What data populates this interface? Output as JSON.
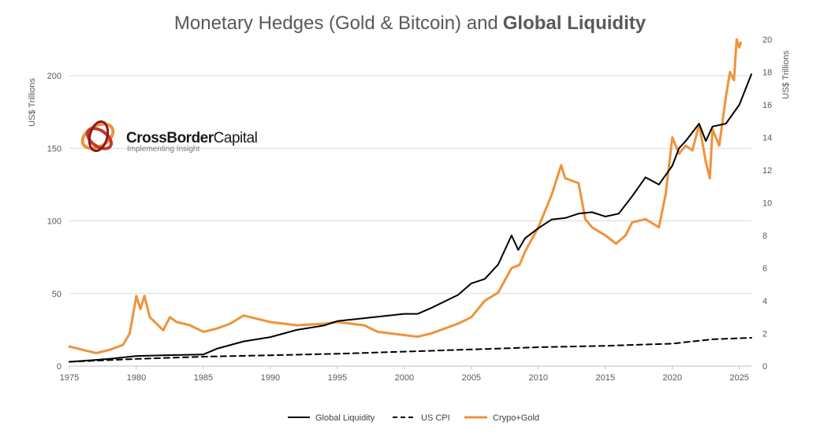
{
  "chart_data": {
    "type": "line",
    "title": "Monetary Hedges (Gold & Bitcoin) and",
    "title_bold": "Global Liquidity",
    "ylabel_left": "US$ Trillions",
    "ylabel_right": "US$ Trillions",
    "xlim": [
      1975,
      2025.9
    ],
    "ylim_left": [
      0,
      225
    ],
    "ylim_right": [
      0,
      20
    ],
    "x_ticks": [
      "1975",
      "1980",
      "1985",
      "1990",
      "1995",
      "2000",
      "2005",
      "2010",
      "2015",
      "2020",
      "2025"
    ],
    "y_ticks_left": [
      "0",
      "50",
      "100",
      "150",
      "200"
    ],
    "y_ticks_right": [
      "0",
      "2",
      "4",
      "6",
      "8",
      "10",
      "12",
      "14",
      "16",
      "18",
      "20"
    ],
    "grid": "horizontal",
    "legend_position": "bottom",
    "series": [
      {
        "name": "Global Liquidity",
        "axis": "left",
        "color": "#000000",
        "style": "solid",
        "x": [
          1975,
          1978,
          1980,
          1982,
          1985,
          1986,
          1988,
          1990,
          1992,
          1994,
          1995,
          1997,
          2000,
          2001,
          2002,
          2004,
          2005,
          2006,
          2007,
          2008,
          2008.5,
          2009,
          2010,
          2011,
          2012,
          2013,
          2014,
          2015,
          2016,
          2017,
          2018,
          2019,
          2020,
          2020.5,
          2021,
          2022,
          2022.5,
          2023,
          2024,
          2025,
          2025.9
        ],
        "values": [
          3,
          5,
          7,
          7.5,
          8,
          12,
          17,
          20,
          25,
          28,
          31,
          33,
          36,
          36,
          40,
          49,
          57,
          60,
          70,
          90,
          80,
          88,
          95,
          101,
          102,
          105,
          106,
          103,
          105,
          117,
          130,
          125,
          138,
          150,
          155,
          167,
          155,
          165,
          167,
          180,
          201
        ]
      },
      {
        "name": "US CPI",
        "axis": "left",
        "color": "#000000",
        "style": "dashed",
        "x": [
          1975,
          1980,
          1985,
          1990,
          1995,
          2000,
          2005,
          2010,
          2015,
          2020,
          2022,
          2023,
          2025.9
        ],
        "values": [
          3,
          5,
          6.5,
          7.5,
          8.5,
          10,
          11.5,
          13,
          14,
          15.5,
          17.5,
          18.5,
          19.5
        ]
      },
      {
        "name": "Crypo+Gold",
        "axis": "right",
        "color": "#F0923B",
        "style": "solid",
        "x": [
          1975,
          1976,
          1977,
          1978,
          1979,
          1979.5,
          1980,
          1980.3,
          1980.6,
          1981,
          1982,
          1982.5,
          1983,
          1984,
          1985,
          1986,
          1987,
          1988,
          1989,
          1990,
          1992,
          1994,
          1995,
          1997,
          1998,
          1999,
          2001,
          2002,
          2003,
          2004,
          2005,
          2006,
          2007,
          2008,
          2008.6,
          2009,
          2010,
          2011,
          2011.7,
          2012,
          2013,
          2013.5,
          2014,
          2015,
          2015.8,
          2016.5,
          2017,
          2018,
          2019,
          2019.5,
          2020,
          2020.5,
          2021,
          2021.5,
          2022,
          2022.5,
          2022.8,
          2023,
          2023.5,
          2024,
          2024.3,
          2024.6,
          2024.8,
          2025,
          2025.1
        ],
        "values": [
          1.2,
          1.0,
          0.8,
          1.0,
          1.3,
          2.0,
          4.3,
          3.5,
          4.3,
          3.0,
          2.2,
          3.0,
          2.7,
          2.5,
          2.1,
          2.3,
          2.6,
          3.1,
          2.9,
          2.7,
          2.5,
          2.6,
          2.7,
          2.5,
          2.1,
          2.0,
          1.8,
          2.0,
          2.3,
          2.6,
          3.0,
          4.0,
          4.5,
          6.0,
          6.2,
          7.0,
          8.5,
          10.5,
          12.3,
          11.5,
          11.2,
          9.0,
          8.5,
          8.0,
          7.5,
          8.0,
          8.8,
          9.0,
          8.5,
          10.5,
          14.0,
          13.0,
          13.5,
          13.2,
          14.8,
          12.5,
          11.5,
          14.5,
          13.5,
          16.5,
          18.0,
          17.5,
          20.0,
          19.5,
          19.8
        ]
      }
    ]
  },
  "logo": {
    "name_bold": "CrossBorder",
    "name_light": "Capital",
    "tagline": "Implementing Insight"
  }
}
